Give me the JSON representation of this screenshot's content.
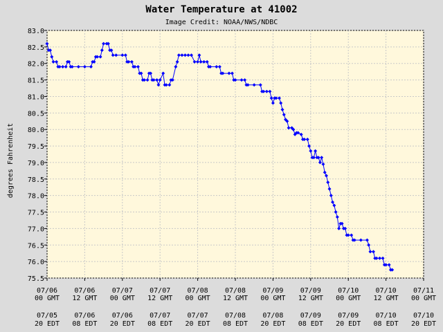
{
  "chart_data": {
    "type": "line",
    "title": "Water Temperature at 41002",
    "subtitle": "Image Credit: NOAA/NWS/NDBC",
    "ylabel": "degrees Fahrenheit",
    "ylim": [
      75.5,
      83.0
    ],
    "yticks": [
      "75.5",
      "76.0",
      "76.5",
      "77.0",
      "77.5",
      "78.0",
      "78.5",
      "79.0",
      "79.5",
      "80.0",
      "80.5",
      "81.0",
      "81.5",
      "82.0",
      "82.5",
      "83.0"
    ],
    "xlim_hours_from_0706_00gmt": [
      0,
      120
    ],
    "xticks_gmt": [
      [
        "07/06",
        "00 GMT"
      ],
      [
        "07/06",
        "12 GMT"
      ],
      [
        "07/07",
        "00 GMT"
      ],
      [
        "07/07",
        "12 GMT"
      ],
      [
        "07/08",
        "00 GMT"
      ],
      [
        "07/08",
        "12 GMT"
      ],
      [
        "07/09",
        "00 GMT"
      ],
      [
        "07/09",
        "12 GMT"
      ],
      [
        "07/10",
        "00 GMT"
      ],
      [
        "07/10",
        "12 GMT"
      ],
      [
        "07/11",
        "00 GMT"
      ]
    ],
    "xticks_edt": [
      [
        "07/05",
        "20 EDT"
      ],
      [
        "07/06",
        "08 EDT"
      ],
      [
        "07/06",
        "20 EDT"
      ],
      [
        "07/07",
        "08 EDT"
      ],
      [
        "07/07",
        "20 EDT"
      ],
      [
        "07/08",
        "08 EDT"
      ],
      [
        "07/08",
        "20 EDT"
      ],
      [
        "07/09",
        "08 EDT"
      ],
      [
        "07/09",
        "20 EDT"
      ],
      [
        "07/10",
        "08 EDT"
      ],
      [
        "07/10",
        "20 EDT"
      ]
    ],
    "grid": true,
    "background": "#fff8dc",
    "series_color": "#0000ff",
    "series": [
      {
        "points": [
          [
            0,
            82.6
          ],
          [
            0.5,
            82.4
          ],
          [
            1,
            82.4
          ],
          [
            1.5,
            82.2
          ],
          [
            2,
            82.05
          ],
          [
            3,
            82.05
          ],
          [
            3.5,
            81.9
          ],
          [
            4,
            81.9
          ],
          [
            5,
            81.9
          ],
          [
            6,
            81.9
          ],
          [
            6.5,
            82.05
          ],
          [
            7,
            82.05
          ],
          [
            7.5,
            81.9
          ],
          [
            8,
            81.9
          ],
          [
            10,
            81.9
          ],
          [
            12,
            81.9
          ],
          [
            14,
            81.9
          ],
          [
            14.5,
            82.05
          ],
          [
            15,
            82.05
          ],
          [
            15.5,
            82.2
          ],
          [
            16,
            82.2
          ],
          [
            17,
            82.2
          ],
          [
            17.5,
            82.4
          ],
          [
            18,
            82.6
          ],
          [
            19,
            82.6
          ],
          [
            19.5,
            82.6
          ],
          [
            20,
            82.4
          ],
          [
            20.5,
            82.4
          ],
          [
            21,
            82.25
          ],
          [
            22,
            82.25
          ],
          [
            24,
            82.25
          ],
          [
            25,
            82.25
          ],
          [
            25.5,
            82.05
          ],
          [
            26,
            82.05
          ],
          [
            27,
            82.05
          ],
          [
            27.5,
            81.9
          ],
          [
            28,
            81.9
          ],
          [
            29,
            81.9
          ],
          [
            29.5,
            81.7
          ],
          [
            30,
            81.7
          ],
          [
            30.5,
            81.5
          ],
          [
            31,
            81.5
          ],
          [
            32,
            81.5
          ],
          [
            32.5,
            81.7
          ],
          [
            33,
            81.7
          ],
          [
            33.5,
            81.5
          ],
          [
            34,
            81.5
          ],
          [
            35,
            81.5
          ],
          [
            35.5,
            81.35
          ],
          [
            36,
            81.5
          ],
          [
            37,
            81.7
          ],
          [
            37.5,
            81.35
          ],
          [
            38,
            81.35
          ],
          [
            39,
            81.35
          ],
          [
            39.5,
            81.5
          ],
          [
            40,
            81.5
          ],
          [
            41,
            81.9
          ],
          [
            41.5,
            82.05
          ],
          [
            42,
            82.25
          ],
          [
            43,
            82.25
          ],
          [
            44,
            82.25
          ],
          [
            45,
            82.25
          ],
          [
            46,
            82.25
          ],
          [
            47,
            82.05
          ],
          [
            48,
            82.05
          ],
          [
            48.5,
            82.25
          ],
          [
            49,
            82.05
          ],
          [
            50,
            82.05
          ],
          [
            51,
            82.05
          ],
          [
            51.5,
            81.9
          ],
          [
            52,
            81.9
          ],
          [
            54,
            81.9
          ],
          [
            55,
            81.9
          ],
          [
            55.5,
            81.7
          ],
          [
            56,
            81.7
          ],
          [
            58,
            81.7
          ],
          [
            59,
            81.7
          ],
          [
            59.5,
            81.5
          ],
          [
            60,
            81.5
          ],
          [
            62,
            81.5
          ],
          [
            63,
            81.5
          ],
          [
            63.5,
            81.35
          ],
          [
            64,
            81.35
          ],
          [
            66,
            81.35
          ],
          [
            68,
            81.35
          ],
          [
            68.5,
            81.15
          ],
          [
            69,
            81.15
          ],
          [
            70,
            81.15
          ],
          [
            71,
            81.15
          ],
          [
            71.5,
            80.95
          ],
          [
            72,
            80.8
          ],
          [
            72.5,
            80.95
          ],
          [
            73,
            80.95
          ],
          [
            74,
            80.95
          ],
          [
            74.5,
            80.8
          ],
          [
            75,
            80.6
          ],
          [
            75.5,
            80.45
          ],
          [
            76,
            80.3
          ],
          [
            76.5,
            80.25
          ],
          [
            77,
            80.05
          ],
          [
            78,
            80.05
          ],
          [
            78.5,
            80.0
          ],
          [
            79,
            79.85
          ],
          [
            79.5,
            79.9
          ],
          [
            80,
            79.9
          ],
          [
            81,
            79.85
          ],
          [
            81.5,
            79.7
          ],
          [
            82,
            79.7
          ],
          [
            83,
            79.7
          ],
          [
            83.5,
            79.5
          ],
          [
            84,
            79.35
          ],
          [
            84.5,
            79.15
          ],
          [
            85,
            79.15
          ],
          [
            85.5,
            79.35
          ],
          [
            86,
            79.15
          ],
          [
            86.5,
            79.15
          ],
          [
            87,
            79.0
          ],
          [
            87.5,
            79.15
          ],
          [
            88,
            78.95
          ],
          [
            88.5,
            78.7
          ],
          [
            89,
            78.6
          ],
          [
            89.5,
            78.4
          ],
          [
            90,
            78.2
          ],
          [
            90.5,
            78.0
          ],
          [
            91,
            77.8
          ],
          [
            91.5,
            77.7
          ],
          [
            92,
            77.5
          ],
          [
            92.5,
            77.35
          ],
          [
            93,
            77.0
          ],
          [
            93.5,
            77.15
          ],
          [
            94,
            77.15
          ],
          [
            94.5,
            77.0
          ],
          [
            95,
            77.0
          ],
          [
            95.5,
            76.8
          ],
          [
            96,
            76.8
          ],
          [
            97,
            76.8
          ],
          [
            97.5,
            76.65
          ],
          [
            98,
            76.65
          ],
          [
            100,
            76.65
          ],
          [
            102,
            76.65
          ],
          [
            102.5,
            76.5
          ],
          [
            103,
            76.3
          ],
          [
            104,
            76.3
          ],
          [
            104.5,
            76.1
          ],
          [
            105,
            76.1
          ],
          [
            106,
            76.1
          ],
          [
            107,
            76.1
          ],
          [
            107.5,
            75.9
          ],
          [
            108,
            75.9
          ],
          [
            109,
            75.9
          ],
          [
            109.5,
            75.75
          ],
          [
            110,
            75.75
          ]
        ]
      }
    ]
  }
}
